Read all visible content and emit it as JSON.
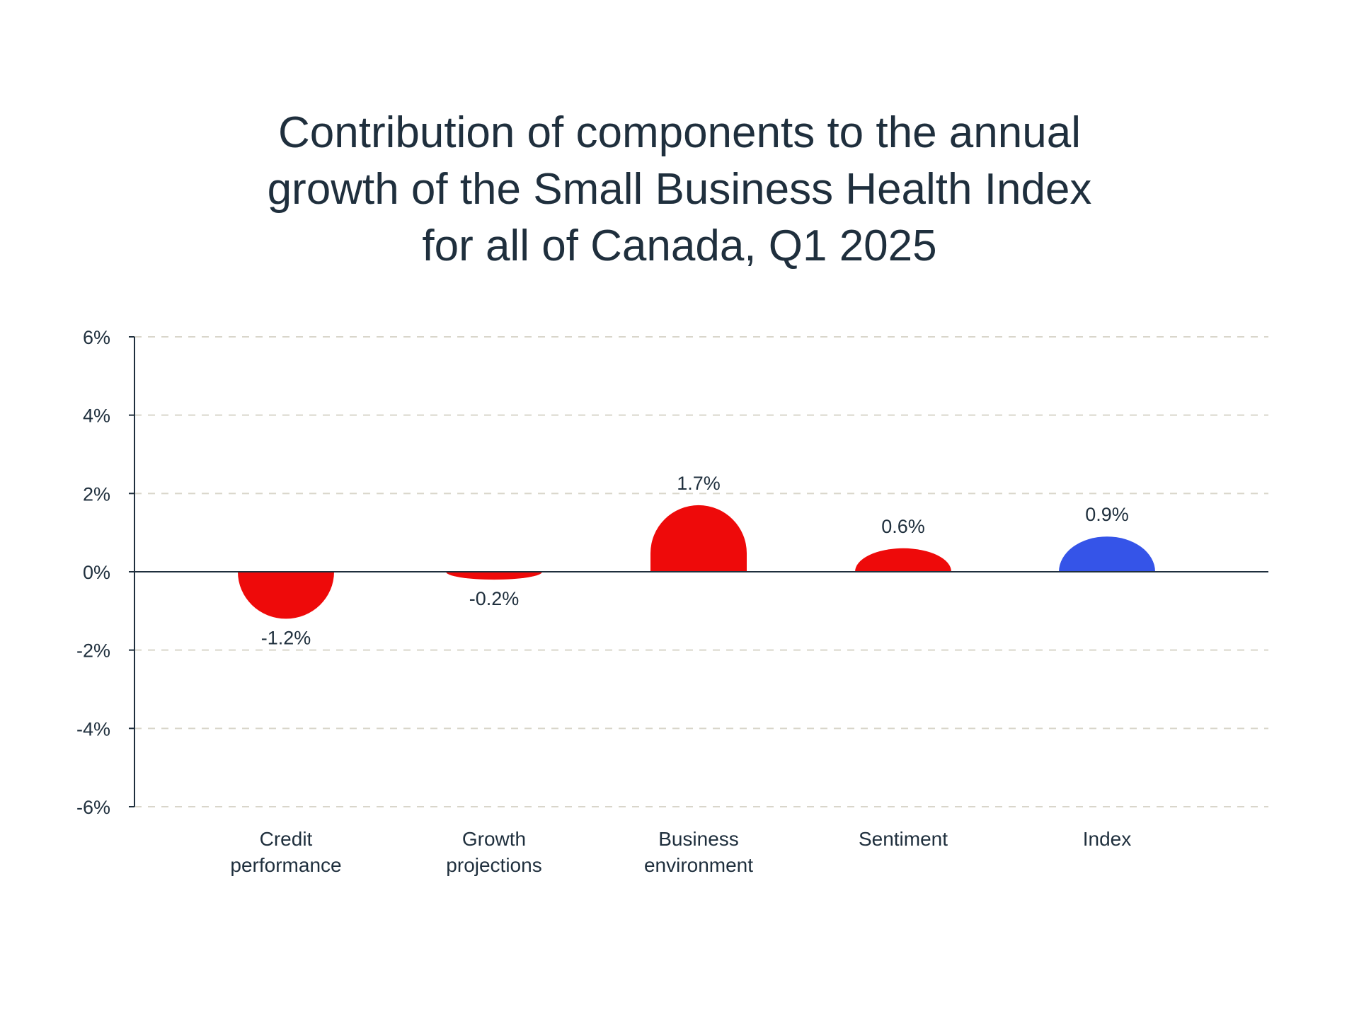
{
  "chart_data": {
    "type": "bar",
    "title_lines": [
      "Contribution of components to the annual",
      "growth of the Small Business Health Index",
      "for all of Canada, Q1 2025"
    ],
    "categories": [
      [
        "Credit",
        "performance"
      ],
      [
        "Growth",
        "projections"
      ],
      [
        "Business",
        "environment"
      ],
      [
        "Sentiment"
      ],
      [
        "Index"
      ]
    ],
    "values": [
      -1.2,
      -0.2,
      1.7,
      0.6,
      0.9
    ],
    "value_labels": [
      "-1.2%",
      "-0.2%",
      "1.7%",
      "0.6%",
      "0.9%"
    ],
    "colors": [
      "#ee0a0a",
      "#ee0a0a",
      "#ee0a0a",
      "#ee0a0a",
      "#3554e8"
    ],
    "ylim": [
      -6,
      6
    ],
    "yticks": [
      6,
      4,
      2,
      0,
      -2,
      -4,
      -6
    ],
    "ytick_labels": [
      "6%",
      "4%",
      "2%",
      "0%",
      "-2%",
      "-4%",
      "-6%"
    ],
    "grid": true,
    "grid_color": "#d9d6cb",
    "axis_color": "#1f2f3d",
    "bar_style": "rounded-end"
  }
}
